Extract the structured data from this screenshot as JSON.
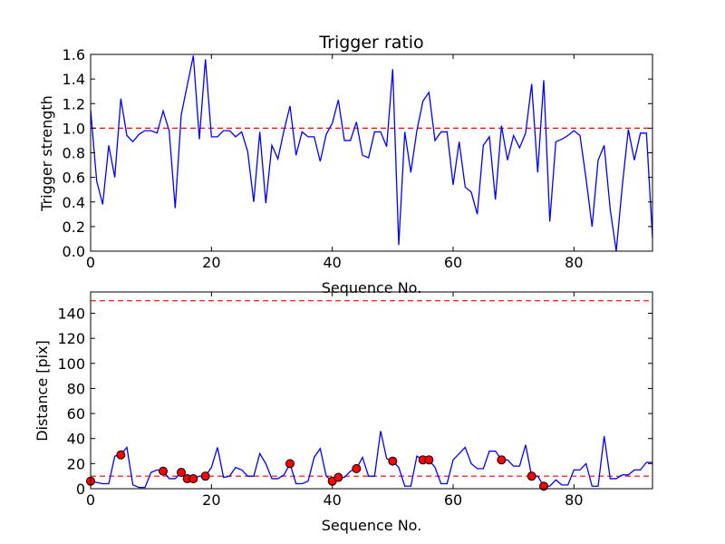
{
  "chart_data": [
    {
      "type": "line",
      "title": "Trigger ratio",
      "xlabel": "Sequence No.",
      "ylabel": "Trigger strength",
      "xlim": [
        0,
        93
      ],
      "ylim": [
        0,
        1.6
      ],
      "xticks": [
        0,
        20,
        40,
        60,
        80
      ],
      "yticks": [
        0.0,
        0.2,
        0.4,
        0.6,
        0.8,
        1.0,
        1.2,
        1.4,
        1.6
      ],
      "ytick_labels": [
        "0.0",
        "0.2",
        "0.4",
        "0.6",
        "0.8",
        "1.0",
        "1.2",
        "1.4",
        "1.6"
      ],
      "threshold": 1.0,
      "series": [
        {
          "name": "trigger strength",
          "color": "#0000ff",
          "x": [
            0,
            1,
            2,
            3,
            4,
            5,
            6,
            7,
            8,
            9,
            10,
            11,
            12,
            13,
            14,
            15,
            16,
            17,
            18,
            19,
            20,
            21,
            22,
            23,
            24,
            25,
            26,
            27,
            28,
            29,
            30,
            31,
            32,
            33,
            34,
            35,
            36,
            37,
            38,
            39,
            40,
            41,
            42,
            43,
            44,
            45,
            46,
            47,
            48,
            49,
            50,
            51,
            52,
            53,
            54,
            55,
            56,
            57,
            58,
            59,
            60,
            61,
            62,
            63,
            64,
            65,
            66,
            67,
            68,
            69,
            70,
            71,
            72,
            73,
            74,
            75,
            76,
            77,
            78,
            79,
            80,
            81,
            82,
            83,
            84,
            85,
            86,
            87,
            88,
            89,
            90,
            91,
            92,
            93
          ],
          "y": [
            1.15,
            0.57,
            0.38,
            0.86,
            0.6,
            1.24,
            0.94,
            0.89,
            0.95,
            0.98,
            0.98,
            0.96,
            1.14,
            0.98,
            0.35,
            1.11,
            1.35,
            1.59,
            0.91,
            1.56,
            0.93,
            0.93,
            0.98,
            0.98,
            0.93,
            0.97,
            0.81,
            0.4,
            0.97,
            0.39,
            0.86,
            0.75,
            0.98,
            1.18,
            0.78,
            0.97,
            0.93,
            0.93,
            0.73,
            0.95,
            1.04,
            1.23,
            0.9,
            0.9,
            1.05,
            0.78,
            0.76,
            0.97,
            0.97,
            0.85,
            1.48,
            0.05,
            0.97,
            0.64,
            0.98,
            1.22,
            1.29,
            0.9,
            0.97,
            0.97,
            0.54,
            0.89,
            0.52,
            0.48,
            0.3,
            0.86,
            0.93,
            0.42,
            1.02,
            0.74,
            0.94,
            0.84,
            0.96,
            1.36,
            0.64,
            1.39,
            0.24,
            0.89,
            0.91,
            0.94,
            0.98,
            0.94,
            0.59,
            0.2,
            0.74,
            0.86,
            0.34,
            0.0,
            0.53,
            0.99,
            0.74,
            0.96,
            0.96,
            0.11
          ]
        }
      ]
    },
    {
      "type": "line",
      "title": "",
      "xlabel": "Sequence No.",
      "ylabel": "Distance [pix]",
      "xlim": [
        0,
        93
      ],
      "ylim": [
        0,
        157
      ],
      "xticks": [
        0,
        20,
        40,
        60,
        80
      ],
      "yticks": [
        0,
        20,
        40,
        60,
        80,
        100,
        120,
        140
      ],
      "ytick_labels": [
        "0",
        "20",
        "40",
        "60",
        "80",
        "100",
        "120",
        "140"
      ],
      "thresholds": [
        10,
        150
      ],
      "series": [
        {
          "name": "distance",
          "color": "#0000ff",
          "x": [
            0,
            1,
            2,
            3,
            4,
            5,
            6,
            7,
            8,
            9,
            10,
            11,
            12,
            13,
            14,
            15,
            16,
            17,
            18,
            19,
            20,
            21,
            22,
            23,
            24,
            25,
            26,
            27,
            28,
            29,
            30,
            31,
            32,
            33,
            34,
            35,
            36,
            37,
            38,
            39,
            40,
            41,
            42,
            43,
            44,
            45,
            46,
            47,
            48,
            49,
            50,
            51,
            52,
            53,
            54,
            55,
            56,
            57,
            58,
            59,
            60,
            61,
            62,
            63,
            64,
            65,
            66,
            67,
            68,
            69,
            70,
            71,
            72,
            73,
            74,
            75,
            76,
            77,
            78,
            79,
            80,
            81,
            82,
            83,
            84,
            85,
            86,
            87,
            88,
            89,
            90,
            91,
            92,
            93
          ],
          "y": [
            6,
            5,
            4,
            4,
            26,
            27,
            33,
            3,
            1,
            1,
            13,
            15,
            14,
            8,
            8,
            13,
            8,
            8,
            10,
            10,
            17,
            33,
            9,
            10,
            17,
            15,
            10,
            10,
            28,
            20,
            8,
            8,
            11,
            20,
            4,
            4,
            6,
            25,
            32,
            10,
            6,
            9,
            9,
            14,
            16,
            25,
            10,
            10,
            46,
            24,
            22,
            17,
            2,
            2,
            26,
            23,
            23,
            17,
            4,
            4,
            23,
            28,
            33,
            20,
            16,
            16,
            30,
            30,
            23,
            23,
            18,
            18,
            35,
            10,
            10,
            2,
            2,
            7,
            3,
            3,
            15,
            15,
            20,
            2,
            2,
            42,
            8,
            8,
            11,
            11,
            15,
            15,
            21,
            21
          ]
        },
        {
          "name": "marked points",
          "color": "#ff0000",
          "marker": "circle",
          "x": [
            0,
            5,
            12,
            15,
            16,
            17,
            19,
            33,
            40,
            41,
            44,
            50,
            55,
            56,
            68,
            73,
            75
          ],
          "y": [
            6,
            27,
            14,
            13,
            8,
            8,
            10,
            20,
            6,
            9,
            16,
            22,
            23,
            23,
            23,
            10,
            2
          ]
        }
      ]
    }
  ]
}
